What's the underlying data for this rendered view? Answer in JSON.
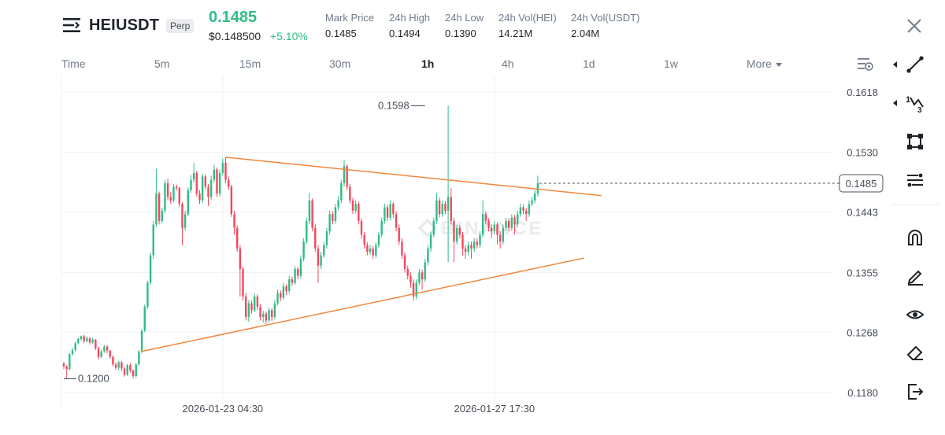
{
  "header": {
    "symbol": "HEIUSDT",
    "badge": "Perp",
    "last_price": "0.1485",
    "usd_price": "$0.148500",
    "change_pct": "+5.10%",
    "stats": [
      {
        "label": "Mark Price",
        "value": "0.1485"
      },
      {
        "label": "24h High",
        "value": "0.1494"
      },
      {
        "label": "24h Low",
        "value": "0.1390"
      },
      {
        "label": "24h Vol(HEI)",
        "value": "14.21M"
      },
      {
        "label": "24h Vol(USDT)",
        "value": "2.04M"
      }
    ],
    "colors": {
      "up": "#2ebd85",
      "down": "#f6465d",
      "trendline": "#f0883e"
    }
  },
  "intervals": {
    "time": "Time",
    "items": [
      "5m",
      "15m",
      "30m",
      "1h",
      "4h",
      "1d",
      "1w"
    ],
    "active": "1h",
    "more": "More"
  },
  "toolbar": {
    "icons": [
      "trendline-icon",
      "fib-icon",
      "rectangle-icon",
      "parallel-channel-icon",
      "magnet-icon",
      "brush-icon",
      "eye-icon",
      "eraser-icon",
      "exit-icon"
    ]
  },
  "chart_data": {
    "type": "candlestick",
    "symbol": "HEIUSDT",
    "interval": "1h",
    "y_ticks": [
      0.1618,
      0.153,
      0.1443,
      0.1355,
      0.1268,
      0.118
    ],
    "ylim": [
      0.1161,
      0.1664
    ],
    "x_ticks": [
      {
        "index": 55,
        "label": "2026-01-23 04:30"
      },
      {
        "index": 149,
        "label": "2026-01-27 17:30"
      }
    ],
    "current_price": 0.1485,
    "high_annotation": {
      "index": 125,
      "value": 0.1598,
      "label": "0.1598"
    },
    "low_annotation": {
      "index": 0,
      "value": 0.12,
      "label": "0.1200"
    },
    "trendlines": [
      {
        "name": "upper",
        "points": [
          [
            56,
            0.1523
          ],
          [
            186,
            0.1467
          ]
        ]
      },
      {
        "name": "lower",
        "points": [
          [
            27,
            0.124
          ],
          [
            180,
            0.1376
          ]
        ]
      }
    ],
    "candles": [
      [
        0.1223,
        0.1218,
        0.1224,
        0.1214
      ],
      [
        0.1218,
        0.1214,
        0.122,
        0.12
      ],
      [
        0.1214,
        0.1236,
        0.1238,
        0.1212
      ],
      [
        0.1236,
        0.1242,
        0.1245,
        0.1234
      ],
      [
        0.1242,
        0.1252,
        0.1254,
        0.124
      ],
      [
        0.1252,
        0.1258,
        0.126,
        0.125
      ],
      [
        0.1258,
        0.1262,
        0.1263,
        0.1255
      ],
      [
        0.1262,
        0.1255,
        0.1264,
        0.1252
      ],
      [
        0.1255,
        0.1259,
        0.1262,
        0.1253
      ],
      [
        0.1259,
        0.1253,
        0.1261,
        0.125
      ],
      [
        0.1253,
        0.1257,
        0.126,
        0.1251
      ],
      [
        0.1257,
        0.1245,
        0.1258,
        0.1242
      ],
      [
        0.1245,
        0.1232,
        0.1247,
        0.1228
      ],
      [
        0.1232,
        0.124,
        0.1243,
        0.123
      ],
      [
        0.124,
        0.1247,
        0.1249,
        0.1238
      ],
      [
        0.1247,
        0.1241,
        0.1249,
        0.1237
      ],
      [
        0.1241,
        0.1232,
        0.1242,
        0.1229
      ],
      [
        0.1232,
        0.1221,
        0.1234,
        0.1218
      ],
      [
        0.1221,
        0.1216,
        0.1224,
        0.1213
      ],
      [
        0.1216,
        0.1224,
        0.1226,
        0.1212
      ],
      [
        0.1224,
        0.1215,
        0.1226,
        0.1211
      ],
      [
        0.1215,
        0.1206,
        0.1217,
        0.1203
      ],
      [
        0.1206,
        0.122,
        0.1222,
        0.1204
      ],
      [
        0.122,
        0.1212,
        0.1223,
        0.1209
      ],
      [
        0.1212,
        0.1204,
        0.1214,
        0.1201
      ],
      [
        0.1204,
        0.1221,
        0.1223,
        0.1202
      ],
      [
        0.1221,
        0.124,
        0.1242,
        0.1219
      ],
      [
        0.124,
        0.127,
        0.1273,
        0.1237
      ],
      [
        0.127,
        0.1305,
        0.1308,
        0.1268
      ],
      [
        0.1305,
        0.134,
        0.1343,
        0.1302
      ],
      [
        0.134,
        0.138,
        0.1384,
        0.1337
      ],
      [
        0.138,
        0.1425,
        0.143,
        0.1375
      ],
      [
        0.1425,
        0.147,
        0.1506,
        0.1421
      ],
      [
        0.147,
        0.143,
        0.1473,
        0.1425
      ],
      [
        0.143,
        0.1445,
        0.1449,
        0.1427
      ],
      [
        0.1445,
        0.1485,
        0.149,
        0.1441
      ],
      [
        0.1485,
        0.1465,
        0.1492,
        0.146
      ],
      [
        0.1465,
        0.146,
        0.1472,
        0.1455
      ],
      [
        0.146,
        0.148,
        0.1484,
        0.1457
      ],
      [
        0.148,
        0.1478,
        0.1483,
        0.1474
      ],
      [
        0.1478,
        0.1455,
        0.148,
        0.145
      ],
      [
        0.1455,
        0.142,
        0.1458,
        0.1395
      ],
      [
        0.142,
        0.144,
        0.1445,
        0.1416
      ],
      [
        0.144,
        0.1475,
        0.1479,
        0.1437
      ],
      [
        0.1475,
        0.149,
        0.1497,
        0.1471
      ],
      [
        0.149,
        0.15,
        0.1515,
        0.1486
      ],
      [
        0.15,
        0.147,
        0.1503,
        0.1466
      ],
      [
        0.147,
        0.146,
        0.1475,
        0.1455
      ],
      [
        0.146,
        0.1495,
        0.1499,
        0.1456
      ],
      [
        0.1495,
        0.148,
        0.1498,
        0.1476
      ],
      [
        0.148,
        0.1465,
        0.1484,
        0.1452
      ],
      [
        0.1465,
        0.149,
        0.1496,
        0.1461
      ],
      [
        0.149,
        0.1505,
        0.1512,
        0.1486
      ],
      [
        0.1505,
        0.147,
        0.1508,
        0.1465
      ],
      [
        0.147,
        0.15,
        0.1505,
        0.1466
      ],
      [
        0.15,
        0.1515,
        0.1521,
        0.1496
      ],
      [
        0.1515,
        0.149,
        0.1523,
        0.1485
      ],
      [
        0.149,
        0.148,
        0.1495,
        0.1475
      ],
      [
        0.148,
        0.144,
        0.1483,
        0.1436
      ],
      [
        0.144,
        0.142,
        0.1445,
        0.141
      ],
      [
        0.142,
        0.139,
        0.1424,
        0.1385
      ],
      [
        0.139,
        0.136,
        0.1395,
        0.132
      ],
      [
        0.136,
        0.132,
        0.1364,
        0.1314
      ],
      [
        0.132,
        0.129,
        0.1325,
        0.1285
      ],
      [
        0.129,
        0.131,
        0.1315,
        0.1283
      ],
      [
        0.131,
        0.13,
        0.1314,
        0.1295
      ],
      [
        0.13,
        0.132,
        0.1324,
        0.1297
      ],
      [
        0.132,
        0.1305,
        0.1323,
        0.13
      ],
      [
        0.1305,
        0.129,
        0.1309,
        0.1285
      ],
      [
        0.129,
        0.1295,
        0.1299,
        0.1282
      ],
      [
        0.1295,
        0.1285,
        0.1298,
        0.128
      ],
      [
        0.1285,
        0.13,
        0.1304,
        0.1282
      ],
      [
        0.13,
        0.129,
        0.1303,
        0.1284
      ],
      [
        0.129,
        0.131,
        0.1315,
        0.1287
      ],
      [
        0.131,
        0.1325,
        0.133,
        0.1307
      ],
      [
        0.1325,
        0.1318,
        0.1329,
        0.1313
      ],
      [
        0.1318,
        0.1335,
        0.134,
        0.1315
      ],
      [
        0.1335,
        0.1328,
        0.1338,
        0.1322
      ],
      [
        0.1328,
        0.1345,
        0.135,
        0.1324
      ],
      [
        0.1345,
        0.134,
        0.1349,
        0.1335
      ],
      [
        0.134,
        0.136,
        0.1364,
        0.1337
      ],
      [
        0.136,
        0.135,
        0.1363,
        0.1345
      ],
      [
        0.135,
        0.1375,
        0.138,
        0.1346
      ],
      [
        0.1375,
        0.14,
        0.1405,
        0.1371
      ],
      [
        0.14,
        0.143,
        0.1435,
        0.1396
      ],
      [
        0.143,
        0.146,
        0.1471,
        0.1425
      ],
      [
        0.146,
        0.142,
        0.1463,
        0.1415
      ],
      [
        0.142,
        0.139,
        0.1425,
        0.1385
      ],
      [
        0.139,
        0.1365,
        0.1395,
        0.134
      ],
      [
        0.1365,
        0.138,
        0.1385,
        0.136
      ],
      [
        0.138,
        0.1395,
        0.1399,
        0.1376
      ],
      [
        0.1395,
        0.1415,
        0.142,
        0.139
      ],
      [
        0.1415,
        0.144,
        0.1445,
        0.141
      ],
      [
        0.144,
        0.143,
        0.1444,
        0.1425
      ],
      [
        0.143,
        0.145,
        0.1455,
        0.1426
      ],
      [
        0.145,
        0.146,
        0.1466,
        0.1446
      ],
      [
        0.146,
        0.1485,
        0.149,
        0.1456
      ],
      [
        0.1485,
        0.151,
        0.1519,
        0.148
      ],
      [
        0.151,
        0.148,
        0.1513,
        0.1475
      ],
      [
        0.148,
        0.146,
        0.1484,
        0.1455
      ],
      [
        0.146,
        0.1445,
        0.1464,
        0.144
      ],
      [
        0.1445,
        0.1455,
        0.146,
        0.1441
      ],
      [
        0.1455,
        0.143,
        0.1458,
        0.1425
      ],
      [
        0.143,
        0.141,
        0.1434,
        0.1405
      ],
      [
        0.141,
        0.1395,
        0.1414,
        0.139
      ],
      [
        0.1395,
        0.1385,
        0.1399,
        0.138
      ],
      [
        0.1385,
        0.139,
        0.1395,
        0.1381
      ],
      [
        0.139,
        0.138,
        0.1393,
        0.1375
      ],
      [
        0.138,
        0.1395,
        0.1399,
        0.1376
      ],
      [
        0.1395,
        0.141,
        0.1414,
        0.1391
      ],
      [
        0.141,
        0.143,
        0.1435,
        0.1406
      ],
      [
        0.143,
        0.145,
        0.1455,
        0.1426
      ],
      [
        0.145,
        0.1435,
        0.1454,
        0.143
      ],
      [
        0.1435,
        0.1455,
        0.146,
        0.1431
      ],
      [
        0.1455,
        0.144,
        0.1458,
        0.1435
      ],
      [
        0.144,
        0.142,
        0.1444,
        0.1415
      ],
      [
        0.142,
        0.14,
        0.1425,
        0.1395
      ],
      [
        0.14,
        0.138,
        0.1405,
        0.1375
      ],
      [
        0.138,
        0.136,
        0.1384,
        0.1355
      ],
      [
        0.136,
        0.135,
        0.1365,
        0.1345
      ],
      [
        0.135,
        0.134,
        0.1355,
        0.1333
      ],
      [
        0.134,
        0.132,
        0.1345,
        0.1314
      ],
      [
        0.132,
        0.134,
        0.1345,
        0.1316
      ],
      [
        0.134,
        0.1355,
        0.136,
        0.1336
      ],
      [
        0.1355,
        0.1345,
        0.1359,
        0.133
      ],
      [
        0.1345,
        0.137,
        0.1375,
        0.1341
      ],
      [
        0.137,
        0.139,
        0.1395,
        0.1365
      ],
      [
        0.139,
        0.141,
        0.1414,
        0.1385
      ],
      [
        0.141,
        0.143,
        0.1435,
        0.1406
      ],
      [
        0.143,
        0.146,
        0.1471,
        0.1426
      ],
      [
        0.146,
        0.144,
        0.1464,
        0.1435
      ],
      [
        0.144,
        0.1455,
        0.146,
        0.1436
      ],
      [
        0.1455,
        0.1445,
        0.1459,
        0.144
      ],
      [
        0.1445,
        0.1465,
        0.1598,
        0.137
      ],
      [
        0.1465,
        0.143,
        0.1478,
        0.1425
      ],
      [
        0.143,
        0.14,
        0.1435,
        0.137
      ],
      [
        0.14,
        0.142,
        0.1425,
        0.1396
      ],
      [
        0.142,
        0.141,
        0.1424,
        0.1405
      ],
      [
        0.141,
        0.139,
        0.1414,
        0.138
      ],
      [
        0.139,
        0.1385,
        0.1395,
        0.1375
      ],
      [
        0.1385,
        0.1395,
        0.14,
        0.138
      ],
      [
        0.1395,
        0.139,
        0.14,
        0.1375
      ],
      [
        0.139,
        0.14,
        0.1405,
        0.1385
      ],
      [
        0.14,
        0.1395,
        0.1405,
        0.139
      ],
      [
        0.1395,
        0.141,
        0.1415,
        0.1391
      ],
      [
        0.141,
        0.144,
        0.146,
        0.1406
      ],
      [
        0.144,
        0.143,
        0.1444,
        0.1425
      ],
      [
        0.143,
        0.142,
        0.1434,
        0.1415
      ],
      [
        0.142,
        0.1415,
        0.1425,
        0.1405
      ],
      [
        0.1415,
        0.1425,
        0.143,
        0.141
      ],
      [
        0.1425,
        0.141,
        0.1428,
        0.1396
      ],
      [
        0.141,
        0.14,
        0.1415,
        0.139
      ],
      [
        0.14,
        0.142,
        0.1425,
        0.1396
      ],
      [
        0.142,
        0.143,
        0.1435,
        0.1416
      ],
      [
        0.143,
        0.142,
        0.1434,
        0.1415
      ],
      [
        0.142,
        0.1435,
        0.144,
        0.1416
      ],
      [
        0.1435,
        0.1425,
        0.1439,
        0.141
      ],
      [
        0.1425,
        0.144,
        0.1445,
        0.1421
      ],
      [
        0.144,
        0.145,
        0.1455,
        0.1436
      ],
      [
        0.145,
        0.1445,
        0.1454,
        0.144
      ],
      [
        0.1445,
        0.144,
        0.1449,
        0.143
      ],
      [
        0.144,
        0.1455,
        0.146,
        0.1436
      ],
      [
        0.1455,
        0.146,
        0.1465,
        0.1451
      ],
      [
        0.146,
        0.147,
        0.1475,
        0.1456
      ],
      [
        0.147,
        0.1485,
        0.1496,
        0.1466
      ]
    ]
  }
}
